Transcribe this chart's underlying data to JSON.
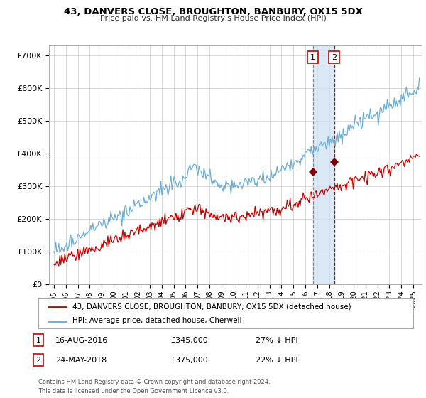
{
  "title": "43, DANVERS CLOSE, BROUGHTON, BANBURY, OX15 5DX",
  "subtitle": "Price paid vs. HM Land Registry's House Price Index (HPI)",
  "ylim": [
    0,
    730000
  ],
  "yticks": [
    0,
    100000,
    200000,
    300000,
    400000,
    500000,
    600000,
    700000
  ],
  "ytick_labels": [
    "£0",
    "£100K",
    "£200K",
    "£300K",
    "£400K",
    "£500K",
    "£600K",
    "£700K"
  ],
  "hpi_color": "#6baed6",
  "property_color": "#cc0000",
  "sale1_date_num": 2016.625,
  "sale1_price": 345000,
  "sale2_date_num": 2018.39,
  "sale2_price": 375000,
  "legend_property": "43, DANVERS CLOSE, BROUGHTON, BANBURY, OX15 5DX (detached house)",
  "legend_hpi": "HPI: Average price, detached house, Cherwell",
  "footer": "Contains HM Land Registry data © Crown copyright and database right 2024.\nThis data is licensed under the Open Government Licence v3.0.",
  "background_color": "#ffffff",
  "grid_color": "#cccccc",
  "shade_color": "#cce0f5"
}
